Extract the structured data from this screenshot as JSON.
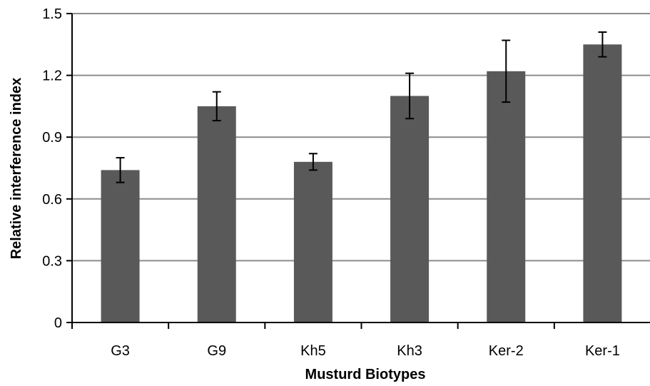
{
  "chart_data": {
    "type": "bar",
    "title": "",
    "xlabel": "Musturd Biotypes",
    "ylabel": "Relative interference index",
    "categories": [
      "G3",
      "G9",
      "Kh5",
      "Kh3",
      "Ker-2",
      "Ker-1"
    ],
    "values": [
      0.74,
      1.05,
      0.78,
      1.1,
      1.22,
      1.35
    ],
    "errors": [
      0.06,
      0.07,
      0.04,
      0.11,
      0.15,
      0.06
    ],
    "ylim": [
      0,
      1.5
    ],
    "yticks": [
      "0",
      "0.3",
      "0.6",
      "0.9",
      "1.2",
      "1.5"
    ],
    "ytick_values": [
      0,
      0.3,
      0.6,
      0.9,
      1.2,
      1.5
    ],
    "grid": true,
    "legend": "none",
    "colors": {
      "bar": "#595959",
      "grid": "#8c8c8c",
      "axis": "#000000",
      "error": "#000000"
    }
  }
}
